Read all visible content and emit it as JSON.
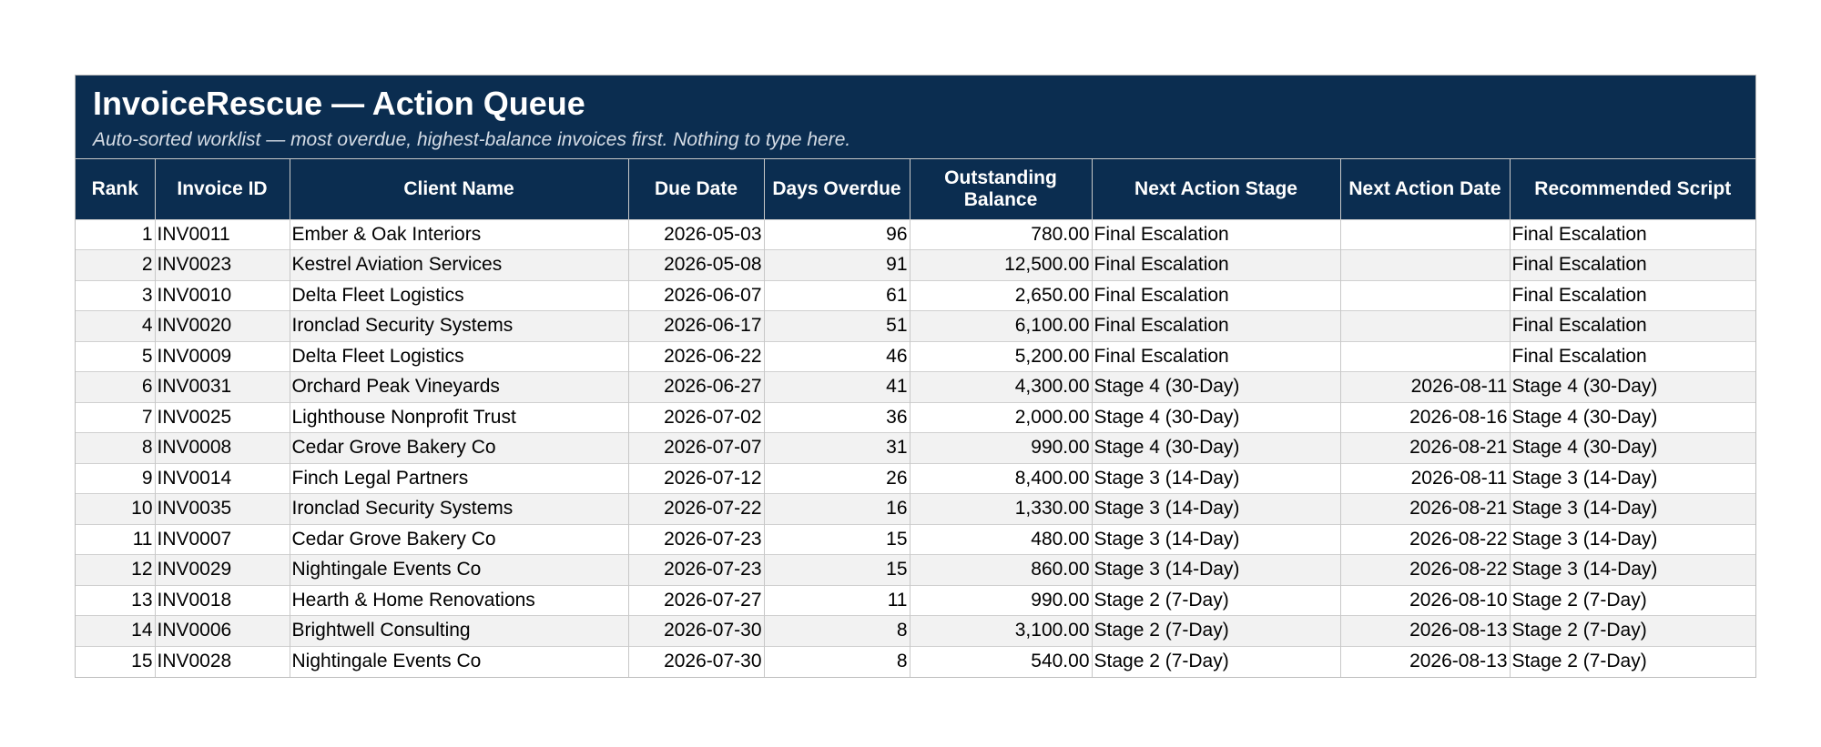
{
  "header": {
    "title": "InvoiceRescue — Action Queue",
    "subtitle": "Auto-sorted worklist — most overdue, highest-balance invoices first. Nothing to type here."
  },
  "table": {
    "columns": [
      "Rank",
      "Invoice ID",
      "Client Name",
      "Due Date",
      "Days Overdue",
      "Outstanding Balance",
      "Next Action Stage",
      "Next Action Date",
      "Recommended Script"
    ],
    "rows": [
      [
        "1",
        "INV0011",
        "Ember & Oak Interiors",
        "2026-05-03",
        "96",
        "780.00",
        "Final Escalation",
        "",
        "Final Escalation"
      ],
      [
        "2",
        "INV0023",
        "Kestrel Aviation Services",
        "2026-05-08",
        "91",
        "12,500.00",
        "Final Escalation",
        "",
        "Final Escalation"
      ],
      [
        "3",
        "INV0010",
        "Delta Fleet Logistics",
        "2026-06-07",
        "61",
        "2,650.00",
        "Final Escalation",
        "",
        "Final Escalation"
      ],
      [
        "4",
        "INV0020",
        "Ironclad Security Systems",
        "2026-06-17",
        "51",
        "6,100.00",
        "Final Escalation",
        "",
        "Final Escalation"
      ],
      [
        "5",
        "INV0009",
        "Delta Fleet Logistics",
        "2026-06-22",
        "46",
        "5,200.00",
        "Final Escalation",
        "",
        "Final Escalation"
      ],
      [
        "6",
        "INV0031",
        "Orchard Peak Vineyards",
        "2026-06-27",
        "41",
        "4,300.00",
        "Stage 4 (30-Day)",
        "2026-08-11",
        "Stage 4 (30-Day)"
      ],
      [
        "7",
        "INV0025",
        "Lighthouse Nonprofit Trust",
        "2026-07-02",
        "36",
        "2,000.00",
        "Stage 4 (30-Day)",
        "2026-08-16",
        "Stage 4 (30-Day)"
      ],
      [
        "8",
        "INV0008",
        "Cedar Grove Bakery Co",
        "2026-07-07",
        "31",
        "990.00",
        "Stage 4 (30-Day)",
        "2026-08-21",
        "Stage 4 (30-Day)"
      ],
      [
        "9",
        "INV0014",
        "Finch Legal Partners",
        "2026-07-12",
        "26",
        "8,400.00",
        "Stage 3 (14-Day)",
        "2026-08-11",
        "Stage 3 (14-Day)"
      ],
      [
        "10",
        "INV0035",
        "Ironclad Security Systems",
        "2026-07-22",
        "16",
        "1,330.00",
        "Stage 3 (14-Day)",
        "2026-08-21",
        "Stage 3 (14-Day)"
      ],
      [
        "11",
        "INV0007",
        "Cedar Grove Bakery Co",
        "2026-07-23",
        "15",
        "480.00",
        "Stage 3 (14-Day)",
        "2026-08-22",
        "Stage 3 (14-Day)"
      ],
      [
        "12",
        "INV0029",
        "Nightingale Events Co",
        "2026-07-23",
        "15",
        "860.00",
        "Stage 3 (14-Day)",
        "2026-08-22",
        "Stage 3 (14-Day)"
      ],
      [
        "13",
        "INV0018",
        "Hearth & Home Renovations",
        "2026-07-27",
        "11",
        "990.00",
        "Stage 2 (7-Day)",
        "2026-08-10",
        "Stage 2 (7-Day)"
      ],
      [
        "14",
        "INV0006",
        "Brightwell Consulting",
        "2026-07-30",
        "8",
        "3,100.00",
        "Stage 2 (7-Day)",
        "2026-08-13",
        "Stage 2 (7-Day)"
      ],
      [
        "15",
        "INV0028",
        "Nightingale Events Co",
        "2026-07-30",
        "8",
        "540.00",
        "Stage 2 (7-Day)",
        "2026-08-13",
        "Stage 2 (7-Day)"
      ]
    ]
  },
  "colors": {
    "header_background": "#0b2d50",
    "header_text": "#ffffff",
    "alternate_row": "#f2f2f2",
    "gridline": "#c8c8c8"
  }
}
